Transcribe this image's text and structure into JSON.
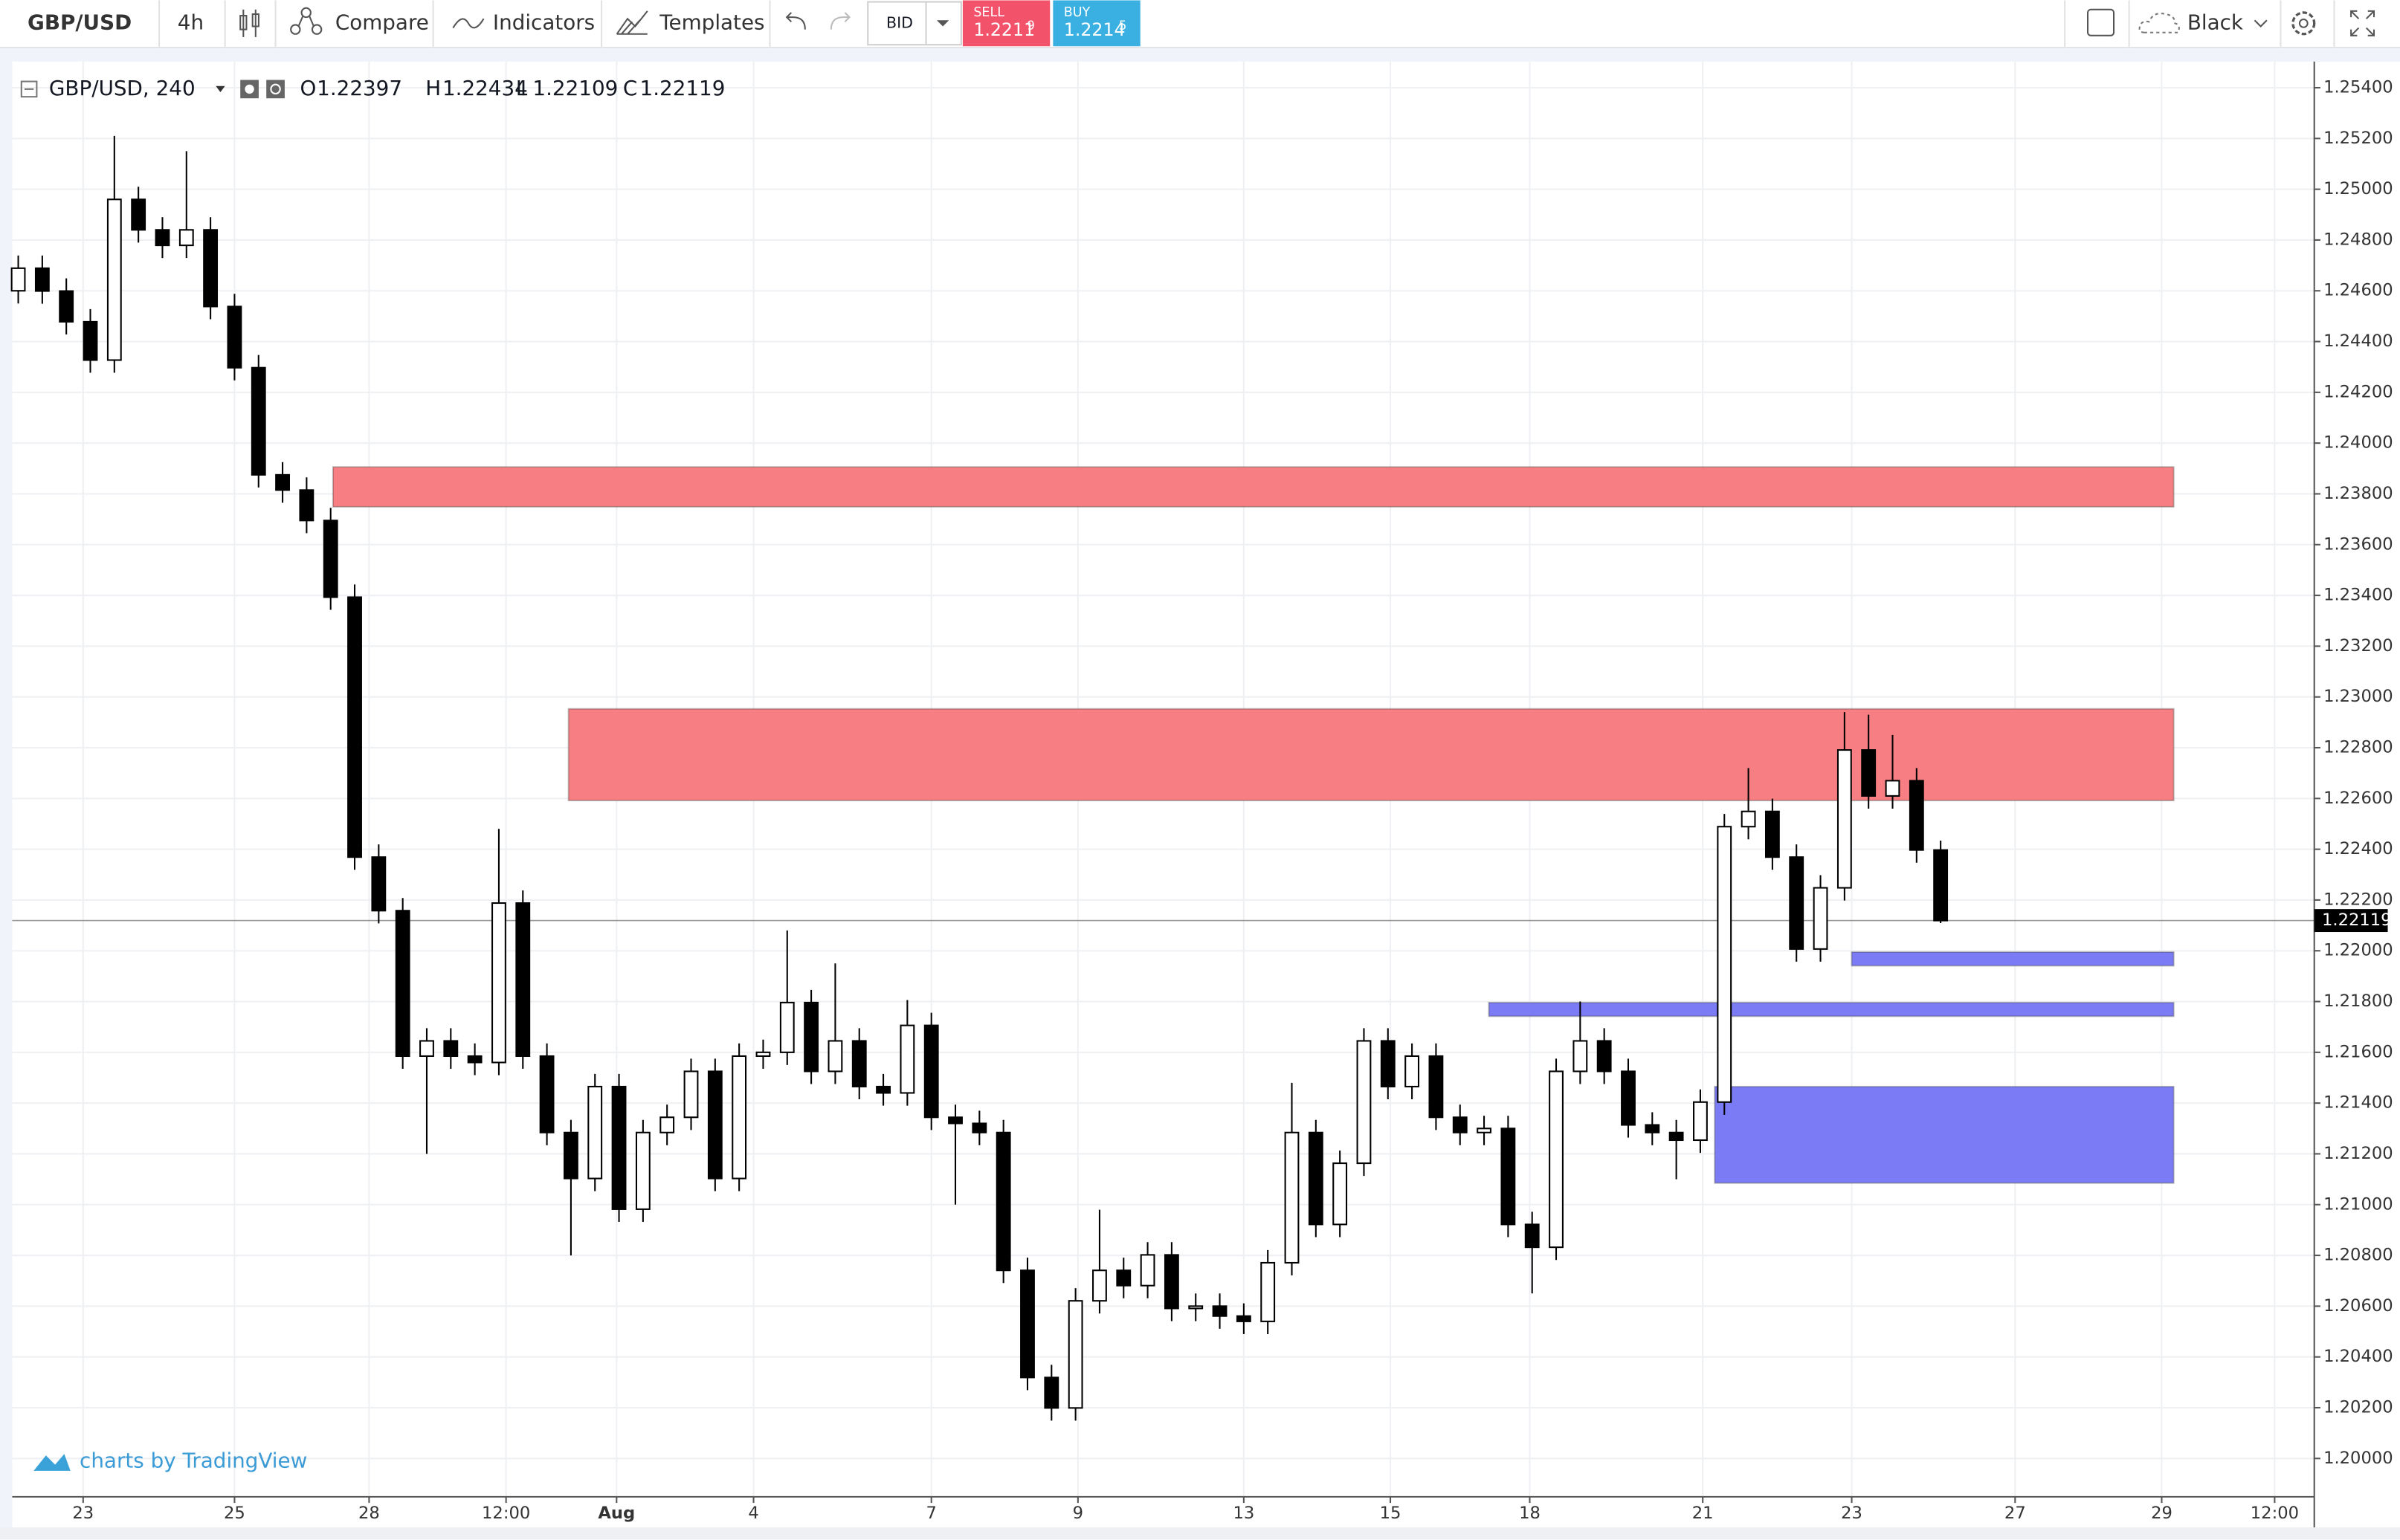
{
  "toolbar": {
    "symbol": "GBP/USD",
    "interval": "4h",
    "compare": "Compare",
    "indicators": "Indicators",
    "templates": "Templates",
    "price_type": "BID",
    "sell_label": "SELL",
    "sell_price": "1.2211",
    "sell_pip": "9",
    "buy_label": "BUY",
    "buy_price": "1.2214",
    "buy_pip": "5",
    "theme": "Black"
  },
  "chart_data": {
    "type": "candlestick",
    "title": "GBP/USD, 240",
    "ohlc_labels": [
      "O",
      "H",
      "L",
      "C"
    ],
    "watermark": "charts by TradingView",
    "up_color": "#ffffff",
    "down_color": "#000000",
    "grid": true,
    "xlim": [
      -0.25,
      95.55
    ],
    "ylim": [
      1.19849,
      1.25503
    ],
    "xticks": [
      {
        "value": 2.7,
        "label": "23"
      },
      {
        "value": 9.0,
        "label": "25"
      },
      {
        "value": 14.6,
        "label": "28"
      },
      {
        "value": 20.3,
        "label": "12:00"
      },
      {
        "value": 24.9,
        "label": "Aug"
      },
      {
        "value": 30.6,
        "label": "4"
      },
      {
        "value": 38.0,
        "label": "7"
      },
      {
        "value": 44.1,
        "label": "9"
      },
      {
        "value": 51.0,
        "label": "13"
      },
      {
        "value": 57.1,
        "label": "15"
      },
      {
        "value": 62.9,
        "label": "18"
      },
      {
        "value": 70.1,
        "label": "21"
      },
      {
        "value": 76.3,
        "label": "23"
      },
      {
        "value": 83.1,
        "label": "27"
      },
      {
        "value": 89.2,
        "label": "29"
      },
      {
        "value": 93.9,
        "label": "12:00"
      }
    ],
    "yticks": [
      {
        "value": 1.2,
        "label": "1.20000"
      },
      {
        "value": 1.202,
        "label": "1.20200"
      },
      {
        "value": 1.204,
        "label": "1.20400"
      },
      {
        "value": 1.206,
        "label": "1.20600"
      },
      {
        "value": 1.208,
        "label": "1.20800"
      },
      {
        "value": 1.21,
        "label": "1.21000"
      },
      {
        "value": 1.212,
        "label": "1.21200"
      },
      {
        "value": 1.214,
        "label": "1.21400"
      },
      {
        "value": 1.216,
        "label": "1.21600"
      },
      {
        "value": 1.218,
        "label": "1.21800"
      },
      {
        "value": 1.22,
        "label": "1.22000"
      },
      {
        "value": 1.222,
        "label": "1.22200"
      },
      {
        "value": 1.224,
        "label": "1.22400"
      },
      {
        "value": 1.226,
        "label": "1.22600"
      },
      {
        "value": 1.228,
        "label": "1.22800"
      },
      {
        "value": 1.23,
        "label": "1.23000"
      },
      {
        "value": 1.232,
        "label": "1.23200"
      },
      {
        "value": 1.234,
        "label": "1.23400"
      },
      {
        "value": 1.236,
        "label": "1.23600"
      },
      {
        "value": 1.238,
        "label": "1.23800"
      },
      {
        "value": 1.24,
        "label": "1.24000"
      },
      {
        "value": 1.242,
        "label": "1.24200"
      },
      {
        "value": 1.244,
        "label": "1.24400"
      },
      {
        "value": 1.246,
        "label": "1.24600"
      },
      {
        "value": 1.248,
        "label": "1.24800"
      },
      {
        "value": 1.25,
        "label": "1.25000"
      },
      {
        "value": 1.252,
        "label": "1.25200"
      },
      {
        "value": 1.254,
        "label": "1.25400"
      }
    ],
    "open": [
      1.246,
      1.24689,
      1.24599,
      1.24478,
      1.24327,
      1.2496,
      1.2484,
      1.24779,
      1.2484,
      1.24538,
      1.24297,
      1.23875,
      1.23815,
      1.23695,
      1.23393,
      1.22369,
      1.22158,
      1.21585,
      1.21645,
      1.21585,
      1.2156,
      1.22188,
      1.21585,
      1.21284,
      1.21103,
      1.21465,
      1.20982,
      1.21284,
      1.21344,
      1.21525,
      1.21103,
      1.21585,
      1.216,
      1.21796,
      1.21525,
      1.21645,
      1.21465,
      1.2144,
      1.21706,
      1.21344,
      1.2132,
      1.21284,
      1.20741,
      1.20319,
      1.20199,
      1.20621,
      1.20741,
      1.20681,
      1.20802,
      1.20591,
      1.206,
      1.20561,
      1.2054,
      1.20771,
      1.21284,
      1.20922,
      1.21163,
      1.21645,
      1.21465,
      1.21585,
      1.21344,
      1.21284,
      1.213,
      1.20922,
      1.20832,
      1.21525,
      1.21645,
      1.21525,
      1.21314,
      1.21284,
      1.21254,
      1.21404,
      1.22489,
      1.22549,
      1.22369,
      1.22007,
      1.22248,
      1.22791,
      1.2261,
      1.2267,
      1.22397
    ],
    "high": [
      1.24739,
      1.24739,
      1.24649,
      1.24528,
      1.2521,
      1.2501,
      1.2489,
      1.2515,
      1.2489,
      1.24588,
      1.24347,
      1.23925,
      1.23865,
      1.23745,
      1.23443,
      1.22419,
      1.22208,
      1.21695,
      1.21695,
      1.21635,
      1.2248,
      1.22238,
      1.21635,
      1.21334,
      1.21515,
      1.21515,
      1.21334,
      1.21394,
      1.21575,
      1.21575,
      1.21635,
      1.2165,
      1.2208,
      1.21846,
      1.2195,
      1.21695,
      1.21515,
      1.21806,
      1.21756,
      1.21394,
      1.2137,
      1.21334,
      1.20791,
      1.20369,
      1.20671,
      1.2098,
      1.20791,
      1.20852,
      1.20852,
      1.2065,
      1.2065,
      1.20611,
      1.20821,
      1.2148,
      1.21334,
      1.21213,
      1.21695,
      1.21695,
      1.21635,
      1.21635,
      1.21394,
      1.2135,
      1.2135,
      1.20972,
      1.21575,
      1.218,
      1.21695,
      1.21575,
      1.21364,
      1.21334,
      1.21454,
      1.22539,
      1.2272,
      1.22599,
      1.22419,
      1.22298,
      1.2294,
      1.2293,
      1.2285,
      1.2272,
      1.22434
    ],
    "low": [
      1.2455,
      1.24549,
      1.24428,
      1.24277,
      1.24277,
      1.2479,
      1.24729,
      1.24729,
      1.24488,
      1.24247,
      1.23825,
      1.23765,
      1.23645,
      1.23343,
      1.22319,
      1.22108,
      1.21535,
      1.212,
      1.21535,
      1.2151,
      1.2151,
      1.21535,
      1.21234,
      1.208,
      1.21053,
      1.20932,
      1.20932,
      1.21234,
      1.21294,
      1.21053,
      1.21053,
      1.21535,
      1.2155,
      1.21475,
      1.21475,
      1.21415,
      1.2139,
      1.2139,
      1.21294,
      1.21,
      1.21234,
      1.20691,
      1.20269,
      1.20149,
      1.20149,
      1.20571,
      1.20631,
      1.20631,
      1.20541,
      1.20541,
      1.20511,
      1.2049,
      1.2049,
      1.20721,
      1.20872,
      1.20872,
      1.21113,
      1.21415,
      1.21415,
      1.21294,
      1.21234,
      1.21234,
      1.20872,
      1.2065,
      1.20782,
      1.21475,
      1.21475,
      1.21264,
      1.21234,
      1.211,
      1.21204,
      1.21354,
      1.22439,
      1.22319,
      1.21957,
      1.21957,
      1.22198,
      1.2256,
      1.2256,
      1.22347,
      1.22109
    ],
    "close": [
      1.24689,
      1.24599,
      1.24478,
      1.24327,
      1.2496,
      1.2484,
      1.24779,
      1.2484,
      1.24538,
      1.24297,
      1.23875,
      1.23815,
      1.23695,
      1.23393,
      1.22369,
      1.22158,
      1.21585,
      1.21645,
      1.21585,
      1.2156,
      1.22188,
      1.21585,
      1.21284,
      1.21103,
      1.21465,
      1.20982,
      1.21284,
      1.21344,
      1.21525,
      1.21103,
      1.21585,
      1.216,
      1.21796,
      1.21525,
      1.21645,
      1.21465,
      1.2144,
      1.21706,
      1.21344,
      1.2132,
      1.21284,
      1.20741,
      1.20319,
      1.20199,
      1.20621,
      1.20741,
      1.20681,
      1.20802,
      1.20591,
      1.206,
      1.20561,
      1.2054,
      1.20771,
      1.21284,
      1.20922,
      1.21163,
      1.21645,
      1.21465,
      1.21585,
      1.21344,
      1.21284,
      1.213,
      1.20922,
      1.20832,
      1.21525,
      1.21645,
      1.21525,
      1.21314,
      1.21284,
      1.21254,
      1.21404,
      1.22489,
      1.22549,
      1.22369,
      1.22007,
      1.22248,
      1.22791,
      1.2261,
      1.2267,
      1.22397,
      1.22119
    ],
    "zones": [
      {
        "x": [
          13.1,
          89.7
        ],
        "y": [
          1.23749,
          1.23906
        ],
        "color": "#f77f83"
      },
      {
        "x": [
          22.9,
          89.7
        ],
        "y": [
          1.22592,
          1.22953
        ],
        "color": "#f77f83"
      },
      {
        "x": [
          61.2,
          89.7
        ],
        "y": [
          1.21742,
          1.21796
        ],
        "color": "#7b7bf5"
      },
      {
        "x": [
          76.3,
          89.7
        ],
        "y": [
          1.21941,
          1.21995
        ],
        "color": "#7b7bf5"
      },
      {
        "x": [
          70.6,
          89.7
        ],
        "y": [
          1.21085,
          1.21465
        ],
        "color": "#7b7bf5"
      }
    ]
  }
}
